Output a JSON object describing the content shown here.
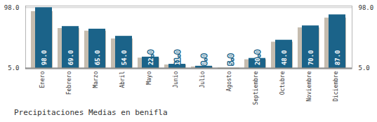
{
  "chart_data": {
    "type": "bar",
    "title": "Precipitaciones Medias en benifla",
    "categories": [
      "Enero",
      "Febrero",
      "Marzo",
      "Abril",
      "Mayo",
      "Junio",
      "Julio",
      "Agosto",
      "Septiembre",
      "Octubre",
      "Noviembre",
      "Diciembre"
    ],
    "series": [
      {
        "color": "#c5bcaf",
        "values": [
          92.0,
          66.0,
          62.0,
          50.0,
          20.5,
          10.0,
          7.0,
          4.0,
          18.0,
          45.0,
          67.0,
          82.0
        ]
      },
      {
        "color": "#1b6389",
        "values": [
          98.0,
          69.0,
          65.0,
          54.0,
          22.0,
          11.0,
          8.0,
          5.0,
          20.0,
          48.0,
          70.0,
          87.0
        ],
        "value_labels": [
          "98.0",
          "69.0",
          "65.0",
          "54.0",
          "22.0",
          "11.0",
          "8.0",
          "5.0",
          "20.0",
          "48.0",
          "70.0",
          "87.0"
        ]
      }
    ],
    "ylim": [
      3.5,
      100.5
    ],
    "yticks": [
      {
        "value": 5,
        "label": "5.0"
      },
      {
        "value": 98,
        "label": "98.0"
      }
    ],
    "grid": true,
    "data_labels": true
  }
}
